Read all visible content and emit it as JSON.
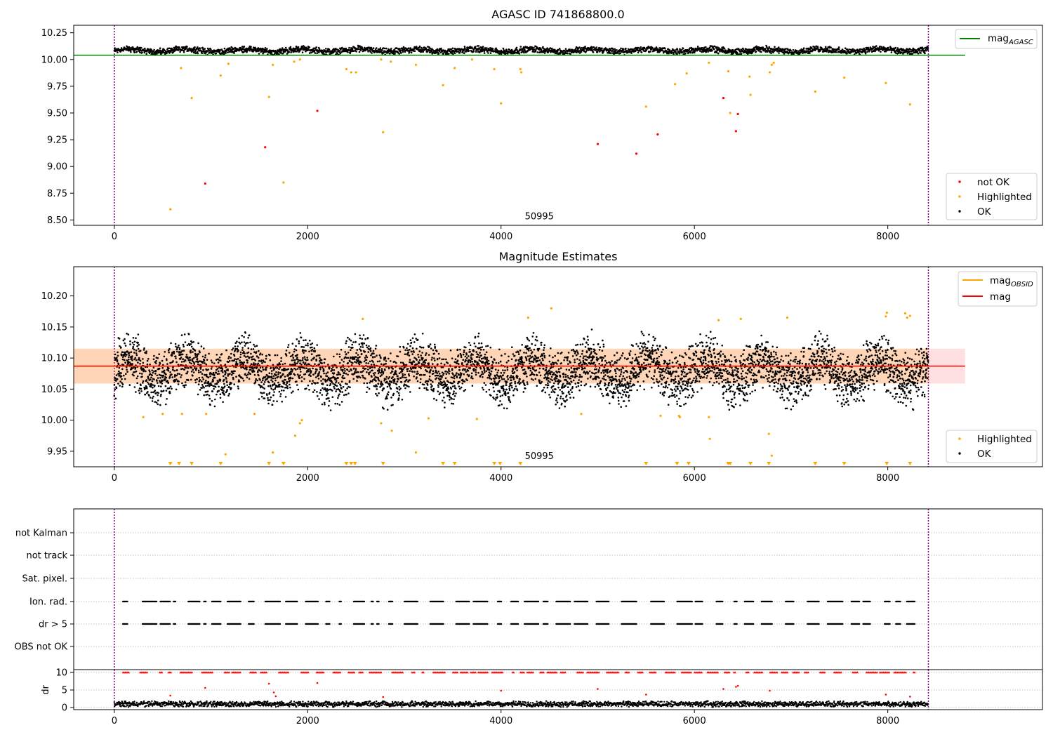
{
  "chart_data": [
    {
      "type": "scatter",
      "title": "AGASC ID 741868800.0",
      "xlim": [
        -420,
        9600
      ],
      "ylim": [
        8.45,
        10.32
      ],
      "xticks": [
        "0",
        "2000",
        "4000",
        "6000",
        "8000"
      ],
      "xtick_values": [
        0,
        2000,
        4000,
        6000,
        8000
      ],
      "yticks": [
        "8.50",
        "8.75",
        "9.00",
        "9.25",
        "9.50",
        "9.75",
        "10.00",
        "10.25"
      ],
      "ytick_values": [
        8.5,
        8.75,
        9.0,
        9.25,
        9.5,
        9.75,
        10.0,
        10.25
      ],
      "obs_boundaries": [
        0,
        8420
      ],
      "annotation": {
        "text": "50995",
        "x": 4200,
        "y": 8.48
      },
      "reference_line": {
        "name": "mag_AGASC",
        "legend_main": "mag",
        "legend_sub": "AGASC",
        "y": 10.04,
        "x_range": [
          -420,
          8800
        ],
        "color": "#008000"
      },
      "ok_band": {
        "x_range": [
          0,
          8420
        ],
        "y_center": 10.085,
        "y_jitter": 0.035
      },
      "series": [
        {
          "name": "not OK",
          "color": "#ff0000",
          "points": [
            [
              940,
              8.84
            ],
            [
              1560,
              9.18
            ],
            [
              2100,
              9.52
            ],
            [
              5000,
              9.21
            ],
            [
              5400,
              9.12
            ],
            [
              5620,
              9.3
            ],
            [
              6300,
              9.64
            ],
            [
              6430,
              9.33
            ],
            [
              6450,
              9.49
            ]
          ]
        },
        {
          "name": "Highlighted",
          "color": "#ffa500",
          "points": [
            [
              580,
              8.6
            ],
            [
              690,
              9.92
            ],
            [
              800,
              9.64
            ],
            [
              1100,
              9.85
            ],
            [
              1180,
              9.96
            ],
            [
              1600,
              9.65
            ],
            [
              1640,
              9.95
            ],
            [
              1750,
              8.85
            ],
            [
              1860,
              9.98
            ],
            [
              1920,
              10.0
            ],
            [
              2400,
              9.91
            ],
            [
              2450,
              9.88
            ],
            [
              2500,
              9.88
            ],
            [
              2760,
              10.0
            ],
            [
              2780,
              9.32
            ],
            [
              2860,
              9.98
            ],
            [
              3120,
              9.95
            ],
            [
              3400,
              9.76
            ],
            [
              3520,
              9.92
            ],
            [
              3700,
              10.0
            ],
            [
              3930,
              9.91
            ],
            [
              4000,
              9.59
            ],
            [
              4200,
              9.91
            ],
            [
              4210,
              9.88
            ],
            [
              5500,
              9.56
            ],
            [
              5800,
              9.77
            ],
            [
              5920,
              9.87
            ],
            [
              6150,
              9.97
            ],
            [
              6350,
              9.89
            ],
            [
              6370,
              9.5
            ],
            [
              6570,
              9.84
            ],
            [
              6580,
              9.67
            ],
            [
              6780,
              9.88
            ],
            [
              6800,
              9.95
            ],
            [
              6820,
              9.97
            ],
            [
              7250,
              9.7
            ],
            [
              7550,
              9.83
            ],
            [
              7980,
              9.78
            ],
            [
              8230,
              9.58
            ]
          ]
        }
      ],
      "legend_markers": [
        {
          "label": "not OK",
          "color": "#ff0000"
        },
        {
          "label": "Highlighted",
          "color": "#ffa500"
        },
        {
          "label": "OK",
          "color": "#000000"
        }
      ]
    },
    {
      "type": "scatter",
      "title": "Magnitude Estimates",
      "xlim": [
        -420,
        9600
      ],
      "ylim": [
        9.925,
        10.247
      ],
      "xticks": [
        "0",
        "2000",
        "4000",
        "6000",
        "8000"
      ],
      "xtick_values": [
        0,
        2000,
        4000,
        6000,
        8000
      ],
      "yticks": [
        "9.95",
        "10.00",
        "10.05",
        "10.10",
        "10.15",
        "10.20"
      ],
      "ytick_values": [
        9.95,
        10.0,
        10.05,
        10.1,
        10.15,
        10.2
      ],
      "obs_boundaries": [
        0,
        8420
      ],
      "annotation": {
        "text": "50995",
        "x": 4200,
        "y": 9.935
      },
      "mag_line": {
        "name": "mag",
        "y": 10.087,
        "x_range": [
          -420,
          8800
        ],
        "color": "#ff0000",
        "band": [
          10.059,
          10.115
        ]
      },
      "obsid_line": {
        "name": "mag_OBSID",
        "legend_main": "mag",
        "legend_sub": "OBSID",
        "y": 10.087,
        "x_range": [
          -420,
          8420
        ],
        "color": "#ffa500",
        "band": [
          10.059,
          10.115
        ]
      },
      "ok_band": {
        "x_range": [
          0,
          8420
        ],
        "y_center": 10.08,
        "y_jitter": 0.05
      },
      "highlighted": [
        [
          300,
          10.005
        ],
        [
          500,
          10.01
        ],
        [
          700,
          10.01
        ],
        [
          950,
          10.01
        ],
        [
          1150,
          9.945
        ],
        [
          1450,
          10.01
        ],
        [
          1640,
          9.948
        ],
        [
          1870,
          9.975
        ],
        [
          1920,
          9.995
        ],
        [
          1940,
          10.0
        ],
        [
          2570,
          10.163
        ],
        [
          2760,
          9.995
        ],
        [
          2870,
          9.983
        ],
        [
          3120,
          9.948
        ],
        [
          3250,
          10.003
        ],
        [
          3750,
          10.002
        ],
        [
          4280,
          10.165
        ],
        [
          4520,
          10.18
        ],
        [
          4830,
          10.01
        ],
        [
          5650,
          10.007
        ],
        [
          5840,
          10.007
        ],
        [
          5850,
          10.005
        ],
        [
          6150,
          10.005
        ],
        [
          6160,
          9.97
        ],
        [
          6250,
          10.161
        ],
        [
          6480,
          10.163
        ],
        [
          6770,
          9.978
        ],
        [
          6800,
          9.943
        ],
        [
          6960,
          10.165
        ],
        [
          7980,
          10.167
        ],
        [
          7990,
          10.173
        ],
        [
          8180,
          10.172
        ],
        [
          8200,
          10.165
        ],
        [
          8230,
          10.168
        ]
      ],
      "below_range_x": [
        580,
        670,
        800,
        1100,
        1600,
        1750,
        2400,
        2450,
        2490,
        2780,
        3400,
        3520,
        3930,
        3990,
        4200,
        5500,
        5820,
        5940,
        6350,
        6370,
        6580,
        6770,
        7250,
        7550,
        7990,
        8230
      ],
      "legend_markers": [
        {
          "label": "Highlighted",
          "color": "#ffa500"
        },
        {
          "label": "OK",
          "color": "#000000"
        }
      ]
    },
    {
      "type": "scatter",
      "title": "",
      "xlim": [
        -420,
        9600
      ],
      "categories": [
        "not Kalman",
        "not track",
        "Sat. pixel.",
        "Ion. rad.",
        "dr > 5",
        "OBS not OK"
      ],
      "flag_rows": {
        "Ion. rad.": "dense",
        "dr > 5": "dense"
      },
      "obs_boundaries": [
        0,
        8420
      ]
    },
    {
      "type": "scatter",
      "title": "",
      "ylabel": "dr",
      "xlim": [
        -420,
        9600
      ],
      "ylim": [
        -0.6,
        10.8
      ],
      "xticks": [
        "0",
        "2000",
        "4000",
        "6000",
        "8000"
      ],
      "xtick_values": [
        0,
        2000,
        4000,
        6000,
        8000
      ],
      "yticks": [
        "0",
        "5",
        "10"
      ],
      "ytick_values": [
        0,
        5,
        10
      ],
      "obs_boundaries": [
        0,
        8420
      ],
      "capped_value": 10,
      "outliers": [
        [
          580,
          3.4
        ],
        [
          940,
          5.6
        ],
        [
          1600,
          6.8
        ],
        [
          1650,
          4.3
        ],
        [
          1670,
          3.2
        ],
        [
          2100,
          7.0
        ],
        [
          2780,
          3.0
        ],
        [
          4000,
          4.8
        ],
        [
          5000,
          5.3
        ],
        [
          5500,
          3.7
        ],
        [
          6300,
          5.3
        ],
        [
          6430,
          5.9
        ],
        [
          6450,
          6.2
        ],
        [
          6780,
          4.8
        ],
        [
          7980,
          3.7
        ],
        [
          8230,
          3.1
        ]
      ],
      "ok_band": {
        "x_range": [
          0,
          8420
        ],
        "y_center": 1.0,
        "y_jitter": 0.9
      }
    }
  ]
}
